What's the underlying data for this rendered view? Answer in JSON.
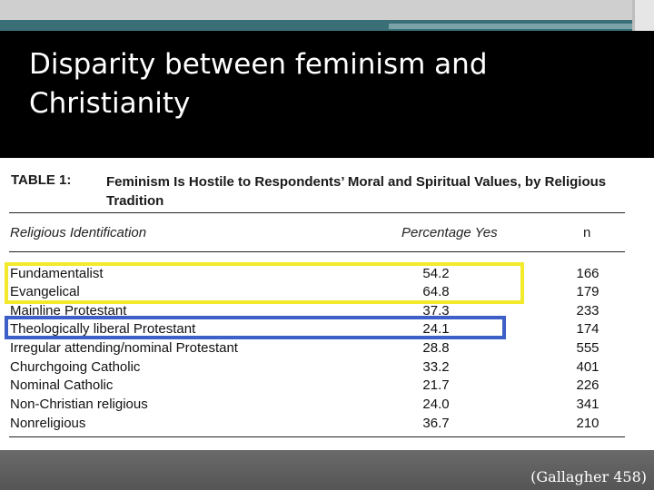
{
  "slide": {
    "title_line1": "Disparity between feminism and",
    "title_line2": "Christianity",
    "citation": "(Gallagher 458)"
  },
  "table": {
    "label": "TABLE 1:",
    "caption": "Feminism Is Hostile to Respondents’ Moral and Spiritual Values, by Religious Tradition",
    "headers": {
      "identification": "Religious Identification",
      "percentage": "Percentage Yes",
      "n": "n"
    },
    "rows": [
      {
        "category": "Fundamentalist",
        "percentage": "54.2",
        "n": "166"
      },
      {
        "category": "Evangelical",
        "percentage": "64.8",
        "n": "179"
      },
      {
        "category": "Mainline Protestant",
        "percentage": "37.3",
        "n": "233"
      },
      {
        "category": "Theologically liberal Protestant",
        "percentage": "24.1",
        "n": "174"
      },
      {
        "category": "Irregular attending/nominal Protestant",
        "percentage": "28.8",
        "n": "555"
      },
      {
        "category": "Churchgoing Catholic",
        "percentage": "33.2",
        "n": "401"
      },
      {
        "category": "Nominal Catholic",
        "percentage": "21.7",
        "n": "226"
      },
      {
        "category": "Non-Christian religious",
        "percentage": "24.0",
        "n": "341"
      },
      {
        "category": "Nonreligious",
        "percentage": "36.7",
        "n": "210"
      }
    ]
  },
  "highlights": {
    "yellow": "#f2ea2b",
    "blue": "#3e5fc7"
  }
}
